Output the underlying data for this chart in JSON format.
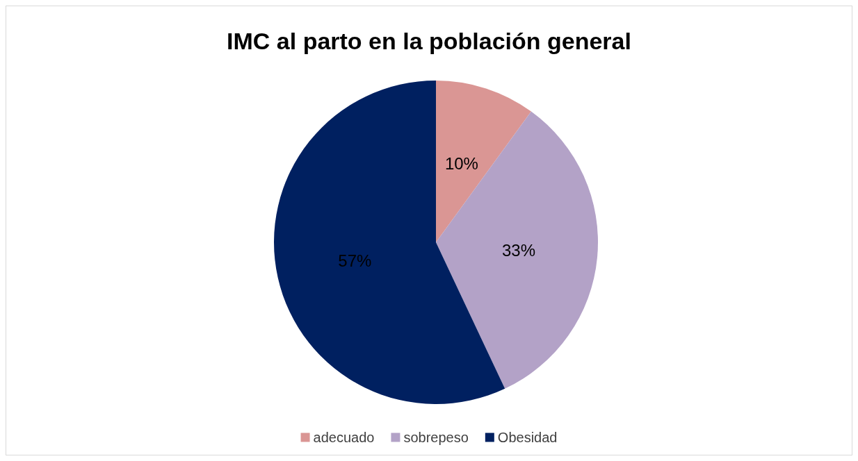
{
  "chart_data": {
    "type": "pie",
    "title": "IMC al parto en la población general",
    "categories": [
      "adecuado",
      "sobrepeso",
      "Obesidad"
    ],
    "values": [
      10,
      33,
      57
    ],
    "colors": [
      "#da9694",
      "#b3a2c7",
      "#002060"
    ],
    "value_labels": [
      "10%",
      "33%",
      "57%"
    ],
    "legend": "bottom"
  }
}
